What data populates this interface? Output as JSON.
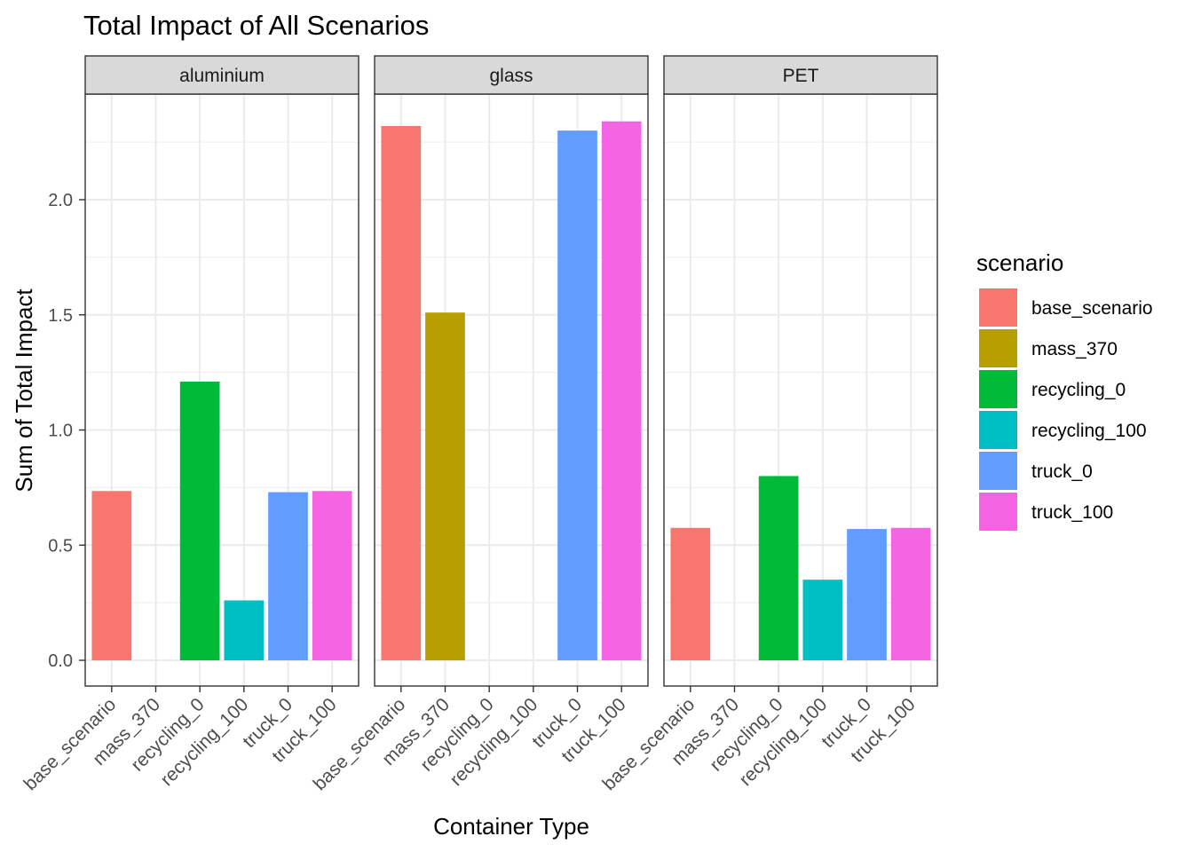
{
  "chart_data": {
    "type": "bar",
    "title": "Total Impact of All Scenarios",
    "xlabel": "Container Type",
    "ylabel": "Sum of Total Impact",
    "ylim": [
      -0.1,
      2.43
    ],
    "yticks": [
      0.0,
      0.5,
      1.0,
      1.5,
      2.0
    ],
    "ytick_labels": [
      "0.0",
      "0.5",
      "1.0",
      "1.5",
      "2.0"
    ],
    "grid": true,
    "legend_position": "right",
    "legend_title": "scenario",
    "categories": [
      "base_scenario",
      "mass_370",
      "recycling_0",
      "recycling_100",
      "truck_0",
      "truck_100"
    ],
    "colors": {
      "base_scenario": "#F8766D",
      "mass_370": "#B79F00",
      "recycling_0": "#00BA38",
      "recycling_100": "#00BFC4",
      "truck_0": "#619CFF",
      "truck_100": "#F564E3"
    },
    "facets": [
      {
        "name": "aluminium",
        "values": [
          0.735,
          null,
          1.21,
          0.26,
          0.73,
          0.735
        ]
      },
      {
        "name": "glass",
        "values": [
          2.32,
          1.51,
          null,
          null,
          2.3,
          2.34
        ]
      },
      {
        "name": "PET",
        "values": [
          0.575,
          null,
          0.8,
          0.35,
          0.57,
          0.575
        ]
      }
    ]
  }
}
